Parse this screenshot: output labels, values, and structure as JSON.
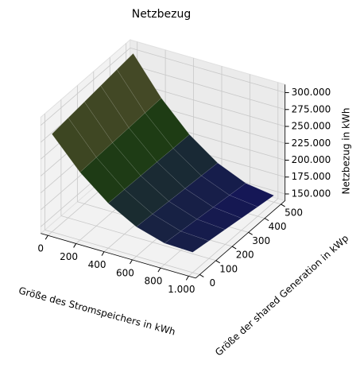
{
  "chart_data": {
    "type": "surface",
    "title": "Netzbezug",
    "xlabel": "Größe des Stromspeichers in kWh",
    "ylabel": "Größe der shared Generation in kWp",
    "zlabel": "Netzbezug in kWh",
    "x": [
      0,
      200,
      400,
      600,
      800,
      1000
    ],
    "y": [
      0,
      100,
      200,
      300,
      400,
      500
    ],
    "z": [
      [
        285000,
        288000,
        291000,
        294000,
        297000,
        300000
      ],
      [
        240400,
        241520,
        242640,
        243760,
        244880,
        246000
      ],
      [
        206600,
        206080,
        205560,
        205040,
        204520,
        204000
      ],
      [
        183600,
        181680,
        179760,
        177840,
        175920,
        174000
      ],
      [
        171400,
        168320,
        165240,
        162160,
        159080,
        156000
      ],
      [
        170000,
        166000,
        162000,
        158000,
        154000,
        150000
      ]
    ],
    "xlim": [
      -50,
      1050
    ],
    "ylim": [
      -25,
      525
    ],
    "zlim": [
      140000,
      312000
    ],
    "xticks": [
      0,
      200,
      400,
      600,
      800,
      {
        "value": 1000,
        "label": "1.000"
      }
    ],
    "yticks": [
      0,
      100,
      200,
      300,
      400,
      500
    ],
    "zticks": [
      {
        "value": 150000,
        "label": "150.000"
      },
      {
        "value": 175000,
        "label": "175.000"
      },
      {
        "value": 200000,
        "label": "200.000"
      },
      {
        "value": 225000,
        "label": "225.000"
      },
      {
        "value": 250000,
        "label": "250.000"
      },
      {
        "value": 275000,
        "label": "275.000"
      },
      {
        "value": 300000,
        "label": "300.000"
      }
    ],
    "colormap": [
      "#14145a",
      "#1e3c14",
      "#5a5030"
    ],
    "grid": true
  }
}
